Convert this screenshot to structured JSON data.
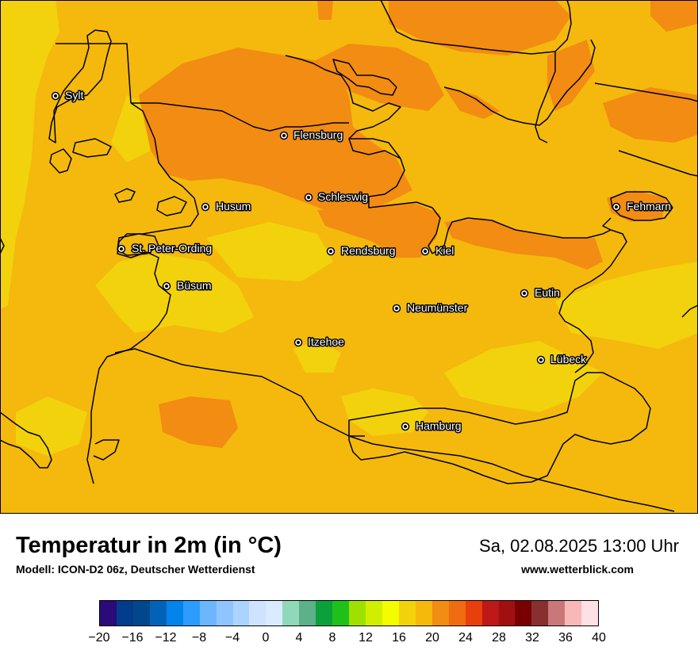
{
  "map": {
    "cities": [
      {
        "name": "Sylt"
      },
      {
        "name": "Flensburg"
      },
      {
        "name": "Schleswig"
      },
      {
        "name": "Husum"
      },
      {
        "name": "Fehmarn"
      },
      {
        "name": "St. Peter-Ording"
      },
      {
        "name": "Rendsburg"
      },
      {
        "name": "Kiel"
      },
      {
        "name": "Büsum"
      },
      {
        "name": "Eutin"
      },
      {
        "name": "Neumünster"
      },
      {
        "name": "Itzehoe"
      },
      {
        "name": "Lübeck"
      },
      {
        "name": "Hamburg"
      }
    ]
  },
  "footer": {
    "title": "Temperatur in 2m (in °C)",
    "subtitle": "Modell: ICON-D2 06z, Deutscher Wetterdienst",
    "datetime": "Sa, 02.08.2025 13:00 Uhr",
    "website": "www.wetterblick.com"
  },
  "legend": {
    "ticks": [
      "−20",
      "−16",
      "−12",
      "−8",
      "−4",
      "0",
      "4",
      "8",
      "12",
      "16",
      "20",
      "24",
      "28",
      "32",
      "36",
      "40"
    ],
    "colors": [
      "#2b0a7a",
      "#023c8a",
      "#02478b",
      "#0262b8",
      "#0284ea",
      "#2e9cff",
      "#6cb6ff",
      "#8ec4ff",
      "#acd3ff",
      "#cde3ff",
      "#d9ebff",
      "#8fd8b9",
      "#5cb08a",
      "#0ca03a",
      "#20c01a",
      "#a0e000",
      "#d0ee00",
      "#f4fc00",
      "#f2d20c",
      "#f4b90c",
      "#f28c12",
      "#f06c10",
      "#e8400c",
      "#be1818",
      "#a01010",
      "#780000",
      "#883030",
      "#c87878",
      "#f8b8b8",
      "#ffe0e4"
    ]
  }
}
